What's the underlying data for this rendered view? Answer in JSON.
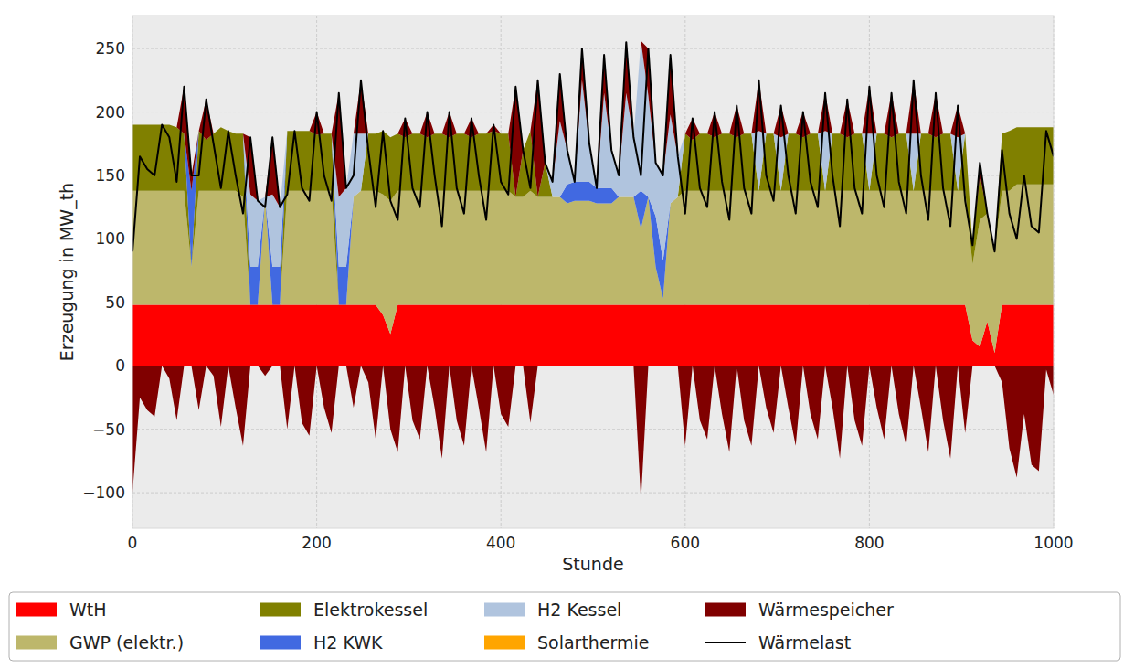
{
  "chart_data": {
    "type": "area",
    "stacked": true,
    "x_label": "Stunde",
    "y_label": "Erzeugung in MW_th",
    "xlim": [
      0,
      1000
    ],
    "ylim": [
      -128,
      276
    ],
    "xticks": [
      0,
      200,
      400,
      600,
      800,
      1000
    ],
    "yticks": [
      {
        "value": -100,
        "label": "−100"
      },
      {
        "value": -50,
        "label": "−50"
      },
      0,
      50,
      100,
      150,
      200,
      250
    ],
    "grid": true,
    "legend": "bottom",
    "x": [
      0,
      8,
      16,
      24,
      32,
      40,
      48,
      56,
      64,
      72,
      80,
      88,
      96,
      104,
      112,
      120,
      128,
      136,
      144,
      152,
      160,
      168,
      176,
      184,
      192,
      200,
      208,
      216,
      224,
      232,
      240,
      248,
      256,
      264,
      272,
      280,
      288,
      296,
      304,
      312,
      320,
      328,
      336,
      344,
      352,
      360,
      368,
      376,
      384,
      392,
      400,
      408,
      416,
      424,
      432,
      440,
      448,
      456,
      464,
      472,
      480,
      488,
      496,
      504,
      512,
      520,
      528,
      536,
      544,
      552,
      560,
      568,
      576,
      584,
      592,
      600,
      608,
      616,
      624,
      632,
      640,
      648,
      656,
      664,
      672,
      680,
      688,
      696,
      704,
      712,
      720,
      728,
      736,
      744,
      752,
      760,
      768,
      776,
      784,
      792,
      800,
      808,
      816,
      824,
      832,
      840,
      848,
      856,
      864,
      872,
      880,
      888,
      896,
      904,
      912,
      920,
      928,
      936,
      944,
      952,
      960,
      968,
      976,
      984,
      992,
      1000
    ],
    "series": [
      {
        "name": "WtH",
        "color": "#ff0000",
        "values": [
          48,
          48,
          48,
          48,
          48,
          48,
          48,
          48,
          48,
          48,
          48,
          48,
          48,
          48,
          48,
          48,
          48,
          48,
          48,
          48,
          48,
          48,
          48,
          48,
          48,
          48,
          48,
          48,
          48,
          48,
          48,
          48,
          48,
          48,
          40,
          25,
          48,
          48,
          48,
          48,
          48,
          48,
          48,
          48,
          48,
          48,
          48,
          48,
          48,
          48,
          48,
          48,
          48,
          48,
          48,
          48,
          48,
          48,
          48,
          48,
          48,
          48,
          48,
          48,
          48,
          48,
          48,
          48,
          48,
          48,
          48,
          48,
          48,
          48,
          48,
          48,
          48,
          48,
          48,
          48,
          48,
          48,
          48,
          48,
          48,
          48,
          48,
          48,
          48,
          48,
          48,
          48,
          48,
          48,
          48,
          48,
          48,
          48,
          48,
          48,
          48,
          48,
          48,
          48,
          48,
          48,
          48,
          48,
          48,
          48,
          48,
          48,
          48,
          48,
          20,
          15,
          35,
          10,
          48,
          48,
          48,
          48,
          48,
          48,
          48,
          48
        ]
      },
      {
        "name": "GWP (elektr.)",
        "color": "#bdb76b",
        "values": [
          90,
          90,
          90,
          90,
          90,
          90,
          90,
          90,
          30,
          90,
          90,
          90,
          90,
          90,
          90,
          85,
          0,
          0,
          85,
          0,
          0,
          90,
          90,
          90,
          90,
          90,
          90,
          90,
          0,
          0,
          85,
          90,
          90,
          90,
          95,
          105,
          90,
          90,
          90,
          90,
          90,
          90,
          90,
          90,
          90,
          90,
          90,
          90,
          90,
          90,
          90,
          90,
          85,
          85,
          90,
          85,
          85,
          85,
          85,
          80,
          82,
          82,
          82,
          80,
          80,
          80,
          85,
          85,
          85,
          60,
          85,
          30,
          5,
          80,
          85,
          90,
          90,
          90,
          90,
          90,
          90,
          90,
          90,
          90,
          90,
          90,
          90,
          90,
          90,
          90,
          90,
          90,
          90,
          90,
          90,
          90,
          90,
          90,
          90,
          90,
          90,
          90,
          90,
          90,
          90,
          90,
          90,
          90,
          90,
          90,
          90,
          90,
          90,
          90,
          60,
          100,
          85,
          80,
          90,
          90,
          95,
          95,
          95,
          95,
          95,
          95
        ]
      },
      {
        "name": "Elektrokessel",
        "color": "#808000",
        "values": [
          52,
          52,
          52,
          52,
          52,
          52,
          50,
          45,
          0,
          47,
          40,
          45,
          50,
          47,
          45,
          50,
          0,
          0,
          0,
          0,
          0,
          47,
          47,
          47,
          47,
          44,
          45,
          45,
          0,
          0,
          0,
          0,
          45,
          45,
          50,
          50,
          45,
          42,
          45,
          45,
          42,
          45,
          45,
          42,
          45,
          45,
          42,
          45,
          45,
          47,
          45,
          45,
          0,
          37,
          47,
          0,
          27,
          0,
          0,
          0,
          0,
          0,
          0,
          0,
          0,
          0,
          0,
          0,
          0,
          0,
          0,
          0,
          0,
          0,
          0,
          45,
          40,
          45,
          45,
          42,
          45,
          45,
          42,
          45,
          45,
          0,
          45,
          45,
          0,
          45,
          45,
          42,
          45,
          45,
          0,
          45,
          45,
          42,
          45,
          45,
          0,
          45,
          45,
          42,
          45,
          45,
          0,
          45,
          45,
          42,
          45,
          45,
          0,
          45,
          15,
          35,
          0,
          0,
          45,
          47,
          45,
          45,
          45,
          45,
          45,
          45
        ]
      },
      {
        "name": "H2 KWK",
        "color": "#4169e1",
        "values": [
          0,
          0,
          0,
          0,
          0,
          0,
          0,
          0,
          60,
          0,
          0,
          0,
          0,
          0,
          0,
          0,
          30,
          30,
          0,
          30,
          30,
          0,
          0,
          0,
          0,
          0,
          0,
          0,
          30,
          30,
          0,
          0,
          0,
          0,
          0,
          0,
          0,
          0,
          0,
          0,
          0,
          0,
          0,
          0,
          0,
          0,
          0,
          0,
          0,
          0,
          0,
          0,
          0,
          0,
          0,
          0,
          0,
          0,
          0,
          15,
          15,
          15,
          15,
          12,
          12,
          12,
          0,
          0,
          0,
          30,
          0,
          40,
          30,
          0,
          0,
          0,
          0,
          0,
          0,
          0,
          0,
          0,
          0,
          0,
          0,
          0,
          0,
          0,
          0,
          0,
          0,
          0,
          0,
          0,
          0,
          0,
          0,
          0,
          0,
          0,
          0,
          0,
          0,
          0,
          0,
          0,
          0,
          0,
          0,
          0,
          0,
          0,
          0,
          0,
          0,
          0,
          0,
          0,
          0,
          0,
          0,
          0,
          0,
          0,
          0,
          0
        ]
      },
      {
        "name": "H2 Kessel",
        "color": "#b0c4de",
        "values": [
          0,
          0,
          0,
          0,
          0,
          0,
          0,
          0,
          0,
          0,
          0,
          0,
          0,
          0,
          0,
          0,
          57,
          52,
          0,
          57,
          47,
          0,
          0,
          0,
          0,
          0,
          0,
          0,
          55,
          62,
          50,
          45,
          0,
          0,
          0,
          0,
          0,
          0,
          0,
          0,
          0,
          0,
          0,
          0,
          0,
          0,
          0,
          0,
          0,
          0,
          0,
          0,
          0,
          0,
          0,
          0,
          0,
          12,
          60,
          27,
          0,
          80,
          30,
          0,
          75,
          30,
          17,
          82,
          47,
          118,
          80,
          42,
          67,
          70,
          32,
          0,
          0,
          0,
          0,
          0,
          0,
          0,
          0,
          0,
          0,
          47,
          0,
          0,
          42,
          0,
          0,
          0,
          0,
          0,
          47,
          0,
          0,
          0,
          0,
          0,
          45,
          0,
          0,
          0,
          0,
          0,
          45,
          0,
          0,
          0,
          0,
          0,
          42,
          0,
          0,
          0,
          0,
          0,
          0,
          0,
          0,
          0,
          0,
          0,
          0,
          0
        ]
      },
      {
        "name": "Solarthermie",
        "color": "#ffa500",
        "values": [
          0,
          0,
          0,
          0,
          0,
          0,
          0,
          0,
          0,
          0,
          0,
          0,
          0,
          0,
          0,
          0,
          0,
          0,
          0,
          0,
          0,
          0,
          0,
          0,
          0,
          0,
          0,
          0,
          0,
          0,
          0,
          0,
          0,
          0,
          0,
          0,
          0,
          0,
          0,
          0,
          0,
          0,
          0,
          0,
          0,
          0,
          0,
          0,
          0,
          0,
          0,
          0,
          0,
          0,
          0,
          0,
          0,
          0,
          0,
          0,
          0,
          0,
          0,
          0,
          0,
          0,
          0,
          0,
          0,
          0,
          0,
          0,
          0,
          0,
          0,
          0,
          0,
          0,
          0,
          0,
          0,
          0,
          0,
          0,
          0,
          0,
          0,
          0,
          0,
          0,
          0,
          0,
          0,
          0,
          0,
          0,
          0,
          0,
          0,
          0,
          0,
          0,
          0,
          0,
          0,
          0,
          0,
          0,
          0,
          0,
          0,
          0,
          0,
          0,
          0,
          0,
          0,
          0,
          0,
          0,
          0,
          0,
          0,
          0,
          0,
          0
        ]
      },
      {
        "name": "Wärmespeicher",
        "color": "#800000",
        "values": [
          -100,
          -25,
          -35,
          -40,
          0,
          -10,
          -43,
          37,
          12,
          -35,
          32,
          -8,
          -48,
          0,
          -33,
          -63,
          45,
          0,
          -8,
          45,
          0,
          -50,
          0,
          -45,
          -55,
          18,
          -33,
          -53,
          82,
          0,
          -33,
          42,
          -13,
          -58,
          0,
          -50,
          -68,
          15,
          -43,
          -58,
          20,
          -33,
          -73,
          20,
          -43,
          -63,
          15,
          -33,
          -68,
          5,
          -38,
          -48,
          87,
          0,
          -45,
          92,
          0,
          0,
          37,
          0,
          0,
          25,
          0,
          0,
          30,
          0,
          0,
          40,
          0,
          -106,
          37,
          0,
          0,
          47,
          0,
          -63,
          17,
          -43,
          -58,
          20,
          -38,
          -68,
          25,
          -43,
          -63,
          40,
          -33,
          -53,
          25,
          -33,
          -63,
          20,
          -38,
          -58,
          30,
          -33,
          -73,
          30,
          -43,
          -63,
          37,
          -33,
          -58,
          35,
          -38,
          -63,
          42,
          -33,
          -68,
          35,
          -43,
          -73,
          25,
          -53,
          0,
          10,
          0,
          0,
          -13,
          -65,
          -88,
          -38,
          -78,
          -83,
          -3,
          -23
        ]
      },
      {
        "name": "Wärmelast",
        "color": "#000000",
        "type": "line",
        "line_style": "solid",
        "values": [
          90,
          165,
          155,
          150,
          190,
          180,
          145,
          220,
          150,
          150,
          210,
          175,
          140,
          185,
          150,
          120,
          180,
          130,
          125,
          180,
          125,
          135,
          185,
          140,
          130,
          200,
          150,
          130,
          215,
          140,
          150,
          225,
          170,
          125,
          185,
          130,
          115,
          195,
          140,
          125,
          200,
          150,
          110,
          200,
          140,
          120,
          195,
          150,
          115,
          190,
          145,
          135,
          220,
          170,
          140,
          225,
          160,
          145,
          230,
          170,
          145,
          250,
          175,
          140,
          245,
          170,
          150,
          255,
          180,
          150,
          250,
          160,
          150,
          245,
          165,
          120,
          195,
          140,
          125,
          200,
          145,
          115,
          205,
          140,
          120,
          225,
          150,
          130,
          205,
          150,
          120,
          200,
          145,
          125,
          215,
          150,
          110,
          210,
          140,
          120,
          220,
          150,
          125,
          215,
          145,
          120,
          225,
          150,
          115,
          215,
          140,
          110,
          205,
          130,
          95,
          160,
          120,
          90,
          170,
          120,
          100,
          150,
          110,
          105,
          185,
          165
        ]
      }
    ]
  }
}
